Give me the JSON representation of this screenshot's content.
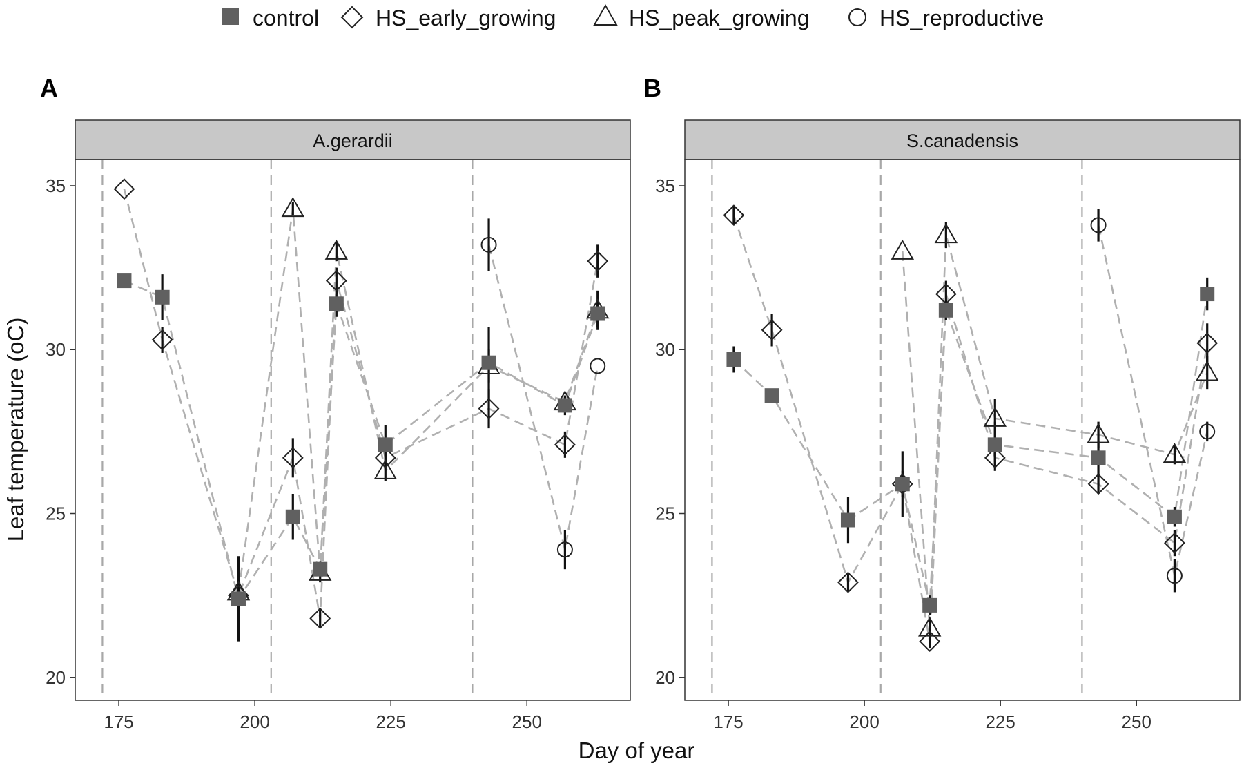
{
  "legend": {
    "items": [
      {
        "label": "control",
        "marker": "filled-square"
      },
      {
        "label": "HS_early_growing",
        "marker": "open-diamond"
      },
      {
        "label": "HS_peak_growing",
        "marker": "open-triangle"
      },
      {
        "label": "HS_reproductive",
        "marker": "open-circle"
      }
    ]
  },
  "axes": {
    "xlabel": "Day of year",
    "ylabel": "Leaf temperature (oC)"
  },
  "colors": {
    "control_fill": "#606060",
    "line": "#b0b0b0",
    "vline": "#a8a8a8",
    "strip_bg": "#c8c8c8",
    "errorbar": "#111111"
  },
  "chart_data": [
    {
      "type": "scatter",
      "panel_label": "A",
      "strip": "A.gerardii",
      "xlim": [
        167,
        269
      ],
      "ylim": [
        19.3,
        35.8
      ],
      "xticks": [
        175,
        200,
        225,
        250
      ],
      "yticks": [
        20,
        25,
        30,
        35
      ],
      "vlines": [
        172,
        203,
        240
      ],
      "series": [
        {
          "name": "control",
          "points": [
            {
              "x": 176,
              "y": 32.1,
              "err": 0.2
            },
            {
              "x": 183,
              "y": 31.6,
              "err": 0.7
            },
            {
              "x": 197,
              "y": 22.4,
              "err": 1.3
            },
            {
              "x": 207,
              "y": 24.9,
              "err": 0.7
            },
            {
              "x": 212,
              "y": 23.3,
              "err": 0.2
            },
            {
              "x": 215,
              "y": 31.4,
              "err": 0.4
            },
            {
              "x": 224,
              "y": 27.1,
              "err": 0.6
            },
            {
              "x": 243,
              "y": 29.6,
              "err": 1.1
            },
            {
              "x": 257,
              "y": 28.3,
              "err": 0.3
            },
            {
              "x": 263,
              "y": 31.1,
              "err": 0.4
            }
          ]
        },
        {
          "name": "HS_early_growing",
          "points": [
            {
              "x": 176,
              "y": 34.9,
              "err": 0
            },
            {
              "x": 183,
              "y": 30.3,
              "err": 0.4
            },
            {
              "x": 197,
              "y": 22.5,
              "err": 0
            },
            {
              "x": 207,
              "y": 26.7,
              "err": 0.6
            },
            {
              "x": 212,
              "y": 21.8,
              "err": 0.3
            },
            {
              "x": 215,
              "y": 32.1,
              "err": 0.4
            },
            {
              "x": 224,
              "y": 26.7,
              "err": 0.3
            },
            {
              "x": 243,
              "y": 28.2,
              "err": 0.6
            },
            {
              "x": 257,
              "y": 27.1,
              "err": 0.4
            },
            {
              "x": 263,
              "y": 32.7,
              "err": 0.5
            }
          ]
        },
        {
          "name": "HS_peak_growing",
          "points": [
            {
              "x": 197,
              "y": 22.6,
              "err": 0
            },
            {
              "x": 207,
              "y": 34.3,
              "err": 0.2
            },
            {
              "x": 212,
              "y": 23.2,
              "err": 0.3
            },
            {
              "x": 215,
              "y": 33.0,
              "err": 0.3
            },
            {
              "x": 224,
              "y": 26.3,
              "err": 0.3
            },
            {
              "x": 243,
              "y": 29.5,
              "err": 0.5
            },
            {
              "x": 257,
              "y": 28.4,
              "err": 0.2
            },
            {
              "x": 263,
              "y": 31.2,
              "err": 0.6
            }
          ]
        },
        {
          "name": "HS_reproductive",
          "points": [
            {
              "x": 243,
              "y": 33.2,
              "err": 0.8
            },
            {
              "x": 257,
              "y": 23.9,
              "err": 0.6
            },
            {
              "x": 263,
              "y": 29.5,
              "err": 0
            }
          ]
        }
      ]
    },
    {
      "type": "scatter",
      "panel_label": "B",
      "strip": "S.canadensis",
      "xlim": [
        167,
        269
      ],
      "ylim": [
        19.3,
        35.8
      ],
      "xticks": [
        175,
        200,
        225,
        250
      ],
      "yticks": [
        20,
        25,
        30,
        35
      ],
      "vlines": [
        172,
        203,
        240
      ],
      "series": [
        {
          "name": "control",
          "points": [
            {
              "x": 176,
              "y": 29.7,
              "err": 0.4
            },
            {
              "x": 183,
              "y": 28.6,
              "err": 0.2
            },
            {
              "x": 197,
              "y": 24.8,
              "err": 0.7
            },
            {
              "x": 207,
              "y": 25.9,
              "err": 1.0
            },
            {
              "x": 212,
              "y": 22.2,
              "err": 0.3
            },
            {
              "x": 215,
              "y": 31.2,
              "err": 0.3
            },
            {
              "x": 224,
              "y": 27.1,
              "err": 0.7
            },
            {
              "x": 243,
              "y": 26.7,
              "err": 0.5
            },
            {
              "x": 257,
              "y": 24.9,
              "err": 0.3
            },
            {
              "x": 263,
              "y": 31.7,
              "err": 0.5
            }
          ]
        },
        {
          "name": "HS_early_growing",
          "points": [
            {
              "x": 176,
              "y": 34.1,
              "err": 0.3
            },
            {
              "x": 183,
              "y": 30.6,
              "err": 0.5
            },
            {
              "x": 197,
              "y": 22.9,
              "err": 0.3
            },
            {
              "x": 207,
              "y": 25.9,
              "err": 0.4
            },
            {
              "x": 212,
              "y": 21.1,
              "err": 0.2
            },
            {
              "x": 215,
              "y": 31.7,
              "err": 0.4
            },
            {
              "x": 224,
              "y": 26.7,
              "err": 0.4
            },
            {
              "x": 243,
              "y": 25.9,
              "err": 0.3
            },
            {
              "x": 257,
              "y": 24.1,
              "err": 0.4
            },
            {
              "x": 263,
              "y": 30.2,
              "err": 0.6
            }
          ]
        },
        {
          "name": "HS_peak_growing",
          "points": [
            {
              "x": 207,
              "y": 33.0,
              "err": 0
            },
            {
              "x": 212,
              "y": 21.5,
              "err": 0.3
            },
            {
              "x": 215,
              "y": 33.5,
              "err": 0.4
            },
            {
              "x": 224,
              "y": 27.9,
              "err": 0.6
            },
            {
              "x": 243,
              "y": 27.4,
              "err": 0.4
            },
            {
              "x": 257,
              "y": 26.8,
              "err": 0.3
            },
            {
              "x": 263,
              "y": 29.3,
              "err": 0.5
            }
          ]
        },
        {
          "name": "HS_reproductive",
          "points": [
            {
              "x": 243,
              "y": 33.8,
              "err": 0.5
            },
            {
              "x": 257,
              "y": 23.1,
              "err": 0.5
            },
            {
              "x": 263,
              "y": 27.5,
              "err": 0.3
            }
          ]
        }
      ]
    }
  ]
}
